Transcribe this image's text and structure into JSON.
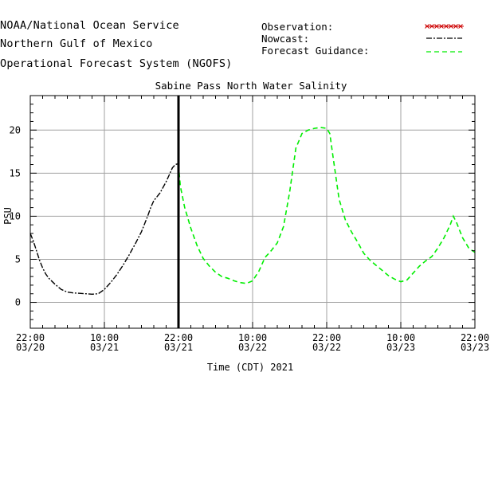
{
  "header": {
    "line1": "NOAA/National Ocean Service",
    "line2": "Northern Gulf of Mexico",
    "line3": "Operational Forecast System (NGOFS)"
  },
  "legend": {
    "observation": "Observation:",
    "nowcast": "Nowcast:",
    "forecast": "Forecast Guidance:"
  },
  "colors": {
    "observation": "#cc0000",
    "nowcast": "#000000",
    "forecast": "#00ee00",
    "grid": "#a0a0a0",
    "divider": "#000000"
  },
  "chart_data": {
    "type": "line",
    "title": "Sabine Pass North Water Salinity",
    "xlabel": "Time (CDT) 2021",
    "ylabel": "PSU",
    "ylim": [
      -3,
      24
    ],
    "xlim_hours": [
      0,
      72
    ],
    "grid": true,
    "legend_position": "top-right",
    "nowcast_end_hour": 24,
    "x_ticks": [
      {
        "hour": 0,
        "time": "22:00",
        "date": "03/20"
      },
      {
        "hour": 12,
        "time": "10:00",
        "date": "03/21"
      },
      {
        "hour": 24,
        "time": "22:00",
        "date": "03/21"
      },
      {
        "hour": 36,
        "time": "10:00",
        "date": "03/22"
      },
      {
        "hour": 48,
        "time": "22:00",
        "date": "03/22"
      },
      {
        "hour": 60,
        "time": "10:00",
        "date": "03/23"
      },
      {
        "hour": 72,
        "time": "22:00",
        "date": "03/23"
      }
    ],
    "y_ticks": [
      0,
      5,
      10,
      15,
      20
    ],
    "series": [
      {
        "name": "Nowcast",
        "style": "dash-dot",
        "points": [
          [
            0,
            8.0
          ],
          [
            0.5,
            7.1
          ],
          [
            1,
            6.0
          ],
          [
            1.5,
            4.9
          ],
          [
            2,
            4.0
          ],
          [
            2.5,
            3.3
          ],
          [
            3,
            2.8
          ],
          [
            4,
            2.1
          ],
          [
            5,
            1.5
          ],
          [
            6,
            1.2
          ],
          [
            7,
            1.1
          ],
          [
            8,
            1.05
          ],
          [
            9,
            1.0
          ],
          [
            10,
            0.95
          ],
          [
            11,
            1.0
          ],
          [
            12,
            1.5
          ],
          [
            13,
            2.3
          ],
          [
            14,
            3.2
          ],
          [
            15,
            4.3
          ],
          [
            16,
            5.5
          ],
          [
            17,
            6.8
          ],
          [
            18,
            8.2
          ],
          [
            19,
            10.0
          ],
          [
            19.5,
            11.0
          ],
          [
            20,
            11.8
          ],
          [
            21,
            12.7
          ],
          [
            22,
            14.0
          ],
          [
            22.5,
            14.8
          ],
          [
            23,
            15.6
          ],
          [
            23.5,
            16.0
          ],
          [
            24,
            16.1
          ]
        ]
      },
      {
        "name": "Forecast Guidance",
        "style": "dashed",
        "points": [
          [
            24,
            16.0
          ],
          [
            24.3,
            13.5
          ],
          [
            25,
            11.0
          ],
          [
            26,
            8.6
          ],
          [
            27,
            6.6
          ],
          [
            28,
            5.1
          ],
          [
            29,
            4.2
          ],
          [
            30,
            3.5
          ],
          [
            31,
            3.0
          ],
          [
            32,
            2.8
          ],
          [
            33,
            2.5
          ],
          [
            34,
            2.3
          ],
          [
            35,
            2.2
          ],
          [
            36,
            2.5
          ],
          [
            37,
            3.6
          ],
          [
            38,
            5.2
          ],
          [
            39,
            6.0
          ],
          [
            40,
            6.9
          ],
          [
            41,
            8.8
          ],
          [
            42,
            12.8
          ],
          [
            43,
            17.9
          ],
          [
            44,
            19.6
          ],
          [
            45,
            20.0
          ],
          [
            46,
            20.2
          ],
          [
            47,
            20.3
          ],
          [
            48,
            20.2
          ],
          [
            48.5,
            19.6
          ],
          [
            49,
            17.0
          ],
          [
            50,
            12.0
          ],
          [
            51,
            9.6
          ],
          [
            52,
            8.2
          ],
          [
            53,
            7.0
          ],
          [
            54,
            5.7
          ],
          [
            55,
            4.9
          ],
          [
            56,
            4.3
          ],
          [
            57,
            3.7
          ],
          [
            58,
            3.1
          ],
          [
            59,
            2.7
          ],
          [
            60,
            2.4
          ],
          [
            61,
            2.6
          ],
          [
            62,
            3.4
          ],
          [
            63,
            4.2
          ],
          [
            64,
            4.8
          ],
          [
            65,
            5.3
          ],
          [
            66,
            6.3
          ],
          [
            67,
            7.5
          ],
          [
            68,
            9.0
          ],
          [
            68.5,
            10.0
          ],
          [
            69,
            9.3
          ],
          [
            70,
            7.5
          ],
          [
            71,
            6.3
          ],
          [
            72,
            5.8
          ]
        ]
      }
    ]
  }
}
